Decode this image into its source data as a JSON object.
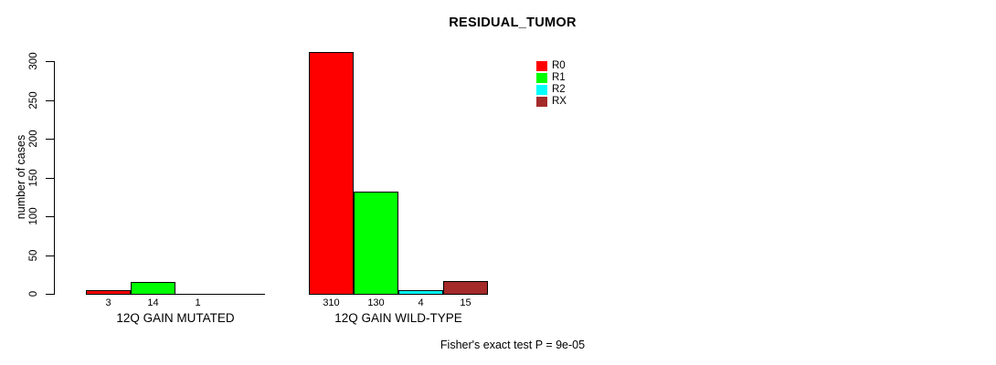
{
  "chart_data": {
    "type": "bar",
    "title": "RESIDUAL_TUMOR",
    "xlabel": "",
    "ylabel": "number of cases",
    "ylim": [
      0,
      300
    ],
    "yticks": [
      0,
      50,
      100,
      150,
      200,
      250,
      300
    ],
    "grid": false,
    "legend_position": "top-right-inside",
    "legend": [
      {
        "label": "R0",
        "color": "#ff0000"
      },
      {
        "label": "R1",
        "color": "#00ff00"
      },
      {
        "label": "R2",
        "color": "#00ffff"
      },
      {
        "label": "RX",
        "color": "#a52a2a"
      }
    ],
    "bar_border_color": "#000000",
    "groups": [
      {
        "label": "12Q GAIN MUTATED",
        "bars": [
          {
            "series": "R0",
            "value": 3,
            "label": "3"
          },
          {
            "series": "R1",
            "value": 14,
            "label": "14"
          },
          {
            "series": "R2",
            "value": 1,
            "label": "1"
          }
        ]
      },
      {
        "label": "12Q GAIN WILD-TYPE",
        "bars": [
          {
            "series": "R0",
            "value": 310,
            "label": "310"
          },
          {
            "series": "R1",
            "value": 130,
            "label": "130"
          },
          {
            "series": "R2",
            "value": 4,
            "label": "4"
          },
          {
            "series": "RX",
            "value": 15,
            "label": "15"
          }
        ]
      }
    ],
    "footnote": "Fisher's exact test P = 9e-05"
  }
}
